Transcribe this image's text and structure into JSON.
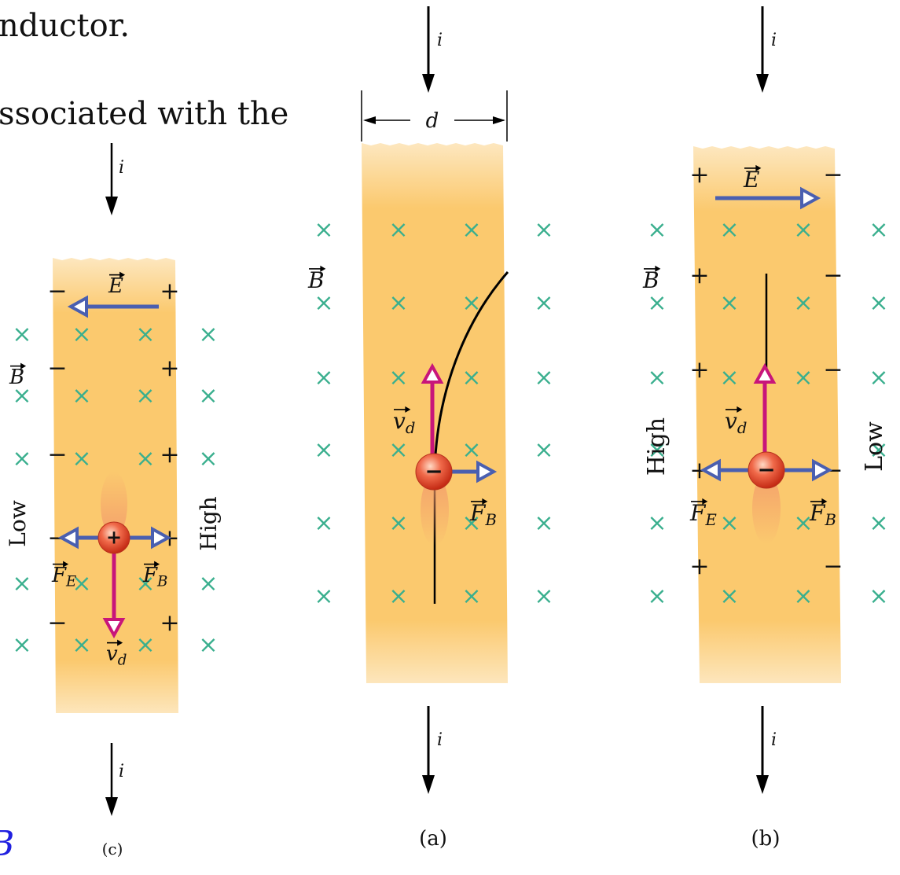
{
  "background_text": {
    "line1": "nductor.",
    "line2": "ssociated with the",
    "line3_fragment": "B"
  },
  "colors": {
    "strip_light": "#fde7bf",
    "strip_mid": "#fbc96e",
    "field_x": "#3aaf8e",
    "vector_blue": "#4a5fb0",
    "vector_magenta": "#c8157a",
    "charge_red": "#e0442a",
    "text": "#111111",
    "blue_text": "#2020e0"
  },
  "symbols": {
    "current": "i",
    "width": "d",
    "field_E": "E",
    "field_B": "B",
    "velocity": "v",
    "velocity_sub": "d",
    "force": "F",
    "force_E_sub": "E",
    "force_B_sub": "B",
    "field_mark": "×"
  },
  "panels": {
    "a": {
      "caption": "(a)",
      "charge_sign": "−"
    },
    "b": {
      "caption": "(b)",
      "charge_sign": "−",
      "left_potential": "High",
      "right_potential": "Low",
      "left_charge": "+",
      "right_charge": "−"
    },
    "c": {
      "caption": "(c)",
      "charge_sign": "+",
      "left_potential": "Low",
      "right_potential": "High",
      "left_charge": "−",
      "right_charge": "+"
    }
  }
}
